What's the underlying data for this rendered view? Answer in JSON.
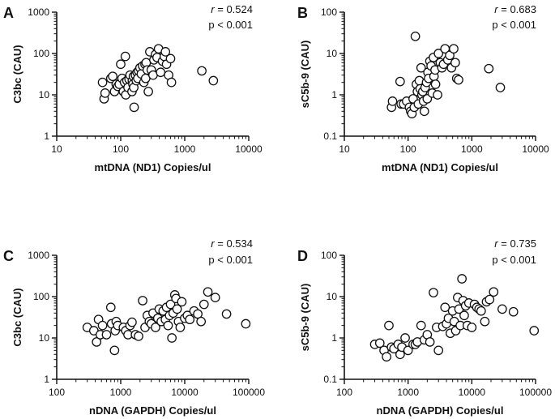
{
  "chart_data": [
    {
      "type": "scatter",
      "panel": "A",
      "xlabel": "mtDNA (ND1) Copies/ul",
      "ylabel": "C3bc (CAU)",
      "xscale": "log",
      "yscale": "log",
      "xlim": [
        10,
        10000
      ],
      "ylim": [
        1,
        1000
      ],
      "xticks": [
        "10",
        "100",
        "1000",
        "10000"
      ],
      "yticks": [
        "1",
        "10",
        "100",
        "1000"
      ],
      "grid": false,
      "annotation": {
        "r_label": "r",
        "r_value": "= 0.524",
        "p": "p < 0.001"
      },
      "points": [
        [
          52,
          20
        ],
        [
          55,
          8
        ],
        [
          57,
          11
        ],
        [
          70,
          25
        ],
        [
          75,
          28
        ],
        [
          80,
          12
        ],
        [
          85,
          18
        ],
        [
          90,
          16
        ],
        [
          95,
          18
        ],
        [
          100,
          55
        ],
        [
          105,
          25
        ],
        [
          110,
          12
        ],
        [
          115,
          20
        ],
        [
          118,
          85
        ],
        [
          120,
          10
        ],
        [
          125,
          22
        ],
        [
          130,
          15
        ],
        [
          135,
          24
        ],
        [
          140,
          30
        ],
        [
          150,
          12
        ],
        [
          152,
          22
        ],
        [
          155,
          18
        ],
        [
          158,
          28
        ],
        [
          160,
          15
        ],
        [
          162,
          5
        ],
        [
          170,
          30
        ],
        [
          175,
          22
        ],
        [
          180,
          35
        ],
        [
          185,
          25
        ],
        [
          190,
          38
        ],
        [
          200,
          45
        ],
        [
          210,
          32
        ],
        [
          220,
          50
        ],
        [
          230,
          20
        ],
        [
          240,
          55
        ],
        [
          245,
          25
        ],
        [
          250,
          60
        ],
        [
          260,
          40
        ],
        [
          270,
          12
        ],
        [
          285,
          110
        ],
        [
          300,
          40
        ],
        [
          320,
          30
        ],
        [
          330,
          70
        ],
        [
          350,
          95
        ],
        [
          370,
          80
        ],
        [
          390,
          130
        ],
        [
          420,
          35
        ],
        [
          450,
          65
        ],
        [
          480,
          85
        ],
        [
          500,
          110
        ],
        [
          520,
          55
        ],
        [
          560,
          30
        ],
        [
          600,
          75
        ],
        [
          620,
          20
        ],
        [
          1850,
          38
        ],
        [
          2800,
          22
        ]
      ]
    },
    {
      "type": "scatter",
      "panel": "B",
      "xlabel": "mtDNA (ND1) Copies/ul",
      "ylabel": "sC5b-9 (CAU)",
      "xscale": "log",
      "yscale": "log",
      "xlim": [
        10,
        10000
      ],
      "ylim": [
        0.1,
        100
      ],
      "xticks": [
        "10",
        "100",
        "1000",
        "10000"
      ],
      "yticks": [
        "0.1",
        "1",
        "10",
        "100"
      ],
      "grid": false,
      "annotation": {
        "r_label": "r",
        "r_value": "= 0.683",
        "p": "p < 0.001"
      },
      "points": [
        [
          55,
          0.5
        ],
        [
          57,
          0.7
        ],
        [
          75,
          2.1
        ],
        [
          78,
          0.6
        ],
        [
          85,
          0.6
        ],
        [
          95,
          0.7
        ],
        [
          105,
          0.5
        ],
        [
          110,
          0.4
        ],
        [
          115,
          0.35
        ],
        [
          120,
          0.8
        ],
        [
          125,
          0.5
        ],
        [
          130,
          26
        ],
        [
          135,
          1.8
        ],
        [
          140,
          1.2
        ],
        [
          145,
          0.6
        ],
        [
          150,
          2.2
        ],
        [
          155,
          1.4
        ],
        [
          160,
          4.5
        ],
        [
          165,
          1.0
        ],
        [
          170,
          1.2
        ],
        [
          175,
          0.7
        ],
        [
          180,
          0.4
        ],
        [
          185,
          1.5
        ],
        [
          195,
          2.0
        ],
        [
          200,
          0.8
        ],
        [
          205,
          3.5
        ],
        [
          210,
          2.5
        ],
        [
          220,
          6.5
        ],
        [
          230,
          5.0
        ],
        [
          240,
          1.1
        ],
        [
          250,
          8.0
        ],
        [
          255,
          2.8
        ],
        [
          265,
          4.0
        ],
        [
          270,
          1.8
        ],
        [
          290,
          1.0
        ],
        [
          300,
          10
        ],
        [
          320,
          6.0
        ],
        [
          340,
          4.5
        ],
        [
          360,
          5.5
        ],
        [
          380,
          13
        ],
        [
          420,
          7.0
        ],
        [
          450,
          9.0
        ],
        [
          480,
          4.5
        ],
        [
          520,
          13
        ],
        [
          550,
          6.0
        ],
        [
          580,
          2.5
        ],
        [
          620,
          2.3
        ],
        [
          1850,
          4.3
        ],
        [
          2800,
          1.5
        ]
      ]
    },
    {
      "type": "scatter",
      "panel": "C",
      "xlabel": "nDNA (GAPDH) Copies/ul",
      "ylabel": "C3bc (CAU)",
      "xscale": "log",
      "yscale": "log",
      "xlim": [
        100,
        100000
      ],
      "ylim": [
        1,
        1000
      ],
      "xticks": [
        "100",
        "1000",
        "10000",
        "100000"
      ],
      "yticks": [
        "1",
        "10",
        "100",
        "1000"
      ],
      "grid": false,
      "annotation": {
        "r_label": "r",
        "r_value": "= 0.534",
        "p": "p < 0.001"
      },
      "points": [
        [
          300,
          18
        ],
        [
          380,
          15
        ],
        [
          420,
          8
        ],
        [
          450,
          28
        ],
        [
          480,
          12
        ],
        [
          520,
          20
        ],
        [
          600,
          12
        ],
        [
          700,
          55
        ],
        [
          720,
          22
        ],
        [
          800,
          5
        ],
        [
          820,
          15
        ],
        [
          850,
          25
        ],
        [
          900,
          20
        ],
        [
          1100,
          18
        ],
        [
          1200,
          15
        ],
        [
          1300,
          12
        ],
        [
          1400,
          20
        ],
        [
          1500,
          24
        ],
        [
          1700,
          12
        ],
        [
          1900,
          11
        ],
        [
          2200,
          80
        ],
        [
          2400,
          18
        ],
        [
          2600,
          35
        ],
        [
          2800,
          25
        ],
        [
          3000,
          22
        ],
        [
          3200,
          40
        ],
        [
          3500,
          18
        ],
        [
          3800,
          30
        ],
        [
          4000,
          50
        ],
        [
          4300,
          25
        ],
        [
          4600,
          45
        ],
        [
          5000,
          28
        ],
        [
          5200,
          55
        ],
        [
          5500,
          20
        ],
        [
          5800,
          35
        ],
        [
          6000,
          65
        ],
        [
          6300,
          10
        ],
        [
          6600,
          40
        ],
        [
          7000,
          110
        ],
        [
          7300,
          90
        ],
        [
          7600,
          50
        ],
        [
          8000,
          25
        ],
        [
          8500,
          18
        ],
        [
          9000,
          75
        ],
        [
          10000,
          30
        ],
        [
          11000,
          35
        ],
        [
          12000,
          28
        ],
        [
          14000,
          45
        ],
        [
          16000,
          38
        ],
        [
          18000,
          25
        ],
        [
          20000,
          65
        ],
        [
          23000,
          130
        ],
        [
          30000,
          95
        ],
        [
          45000,
          38
        ],
        [
          90000,
          22
        ]
      ]
    },
    {
      "type": "scatter",
      "panel": "D",
      "xlabel": "nDNA (GAPDH) Copies/ul",
      "ylabel": "sC5b-9 (CAU)",
      "xscale": "log",
      "yscale": "log",
      "xlim": [
        100,
        100000
      ],
      "ylim": [
        0.1,
        100
      ],
      "xticks": [
        "100",
        "1000",
        "10000",
        "100000"
      ],
      "yticks": [
        "0.1",
        "1",
        "10",
        "100"
      ],
      "grid": false,
      "annotation": {
        "r_label": "r",
        "r_value": "= 0.735",
        "p": "p < 0.001"
      },
      "points": [
        [
          300,
          0.7
        ],
        [
          360,
          0.75
        ],
        [
          420,
          0.5
        ],
        [
          460,
          0.35
        ],
        [
          500,
          2.0
        ],
        [
          550,
          0.6
        ],
        [
          600,
          0.55
        ],
        [
          700,
          0.7
        ],
        [
          750,
          0.4
        ],
        [
          800,
          0.6
        ],
        [
          900,
          1.0
        ],
        [
          1000,
          0.5
        ],
        [
          1200,
          0.7
        ],
        [
          1300,
          0.7
        ],
        [
          1400,
          0.8
        ],
        [
          1600,
          2.0
        ],
        [
          1800,
          0.9
        ],
        [
          2000,
          1.2
        ],
        [
          2200,
          0.8
        ],
        [
          2500,
          12.5
        ],
        [
          2800,
          1.8
        ],
        [
          3000,
          0.5
        ],
        [
          3500,
          1.9
        ],
        [
          3800,
          5.5
        ],
        [
          4000,
          2.2
        ],
        [
          4300,
          3.0
        ],
        [
          4600,
          1.3
        ],
        [
          5000,
          4.5
        ],
        [
          5300,
          2.5
        ],
        [
          5600,
          1.5
        ],
        [
          6000,
          9.5
        ],
        [
          6300,
          5.0
        ],
        [
          6600,
          2.0
        ],
        [
          7000,
          27
        ],
        [
          7300,
          8.0
        ],
        [
          7600,
          3.5
        ],
        [
          8000,
          6.0
        ],
        [
          8500,
          2.0
        ],
        [
          9000,
          7.0
        ],
        [
          10000,
          1.8
        ],
        [
          11000,
          6.5
        ],
        [
          12000,
          5.5
        ],
        [
          13000,
          5.0
        ],
        [
          14000,
          4.5
        ],
        [
          16000,
          2.5
        ],
        [
          17000,
          7.5
        ],
        [
          19000,
          8.5
        ],
        [
          22000,
          13
        ],
        [
          30000,
          5.0
        ],
        [
          45000,
          4.3
        ],
        [
          95000,
          1.5
        ]
      ]
    }
  ]
}
